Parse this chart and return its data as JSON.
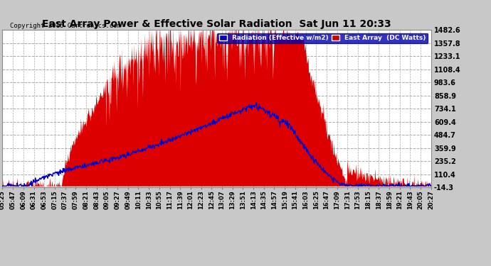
{
  "title": "East Array Power & Effective Solar Radiation  Sat Jun 11 20:33",
  "copyright": "Copyright 2016 Cartronics.com",
  "background_color": "#c8c8c8",
  "plot_bg_color": "#ffffff",
  "legend_labels": [
    "Radiation (Effective w/m2)",
    "East Array  (DC Watts)"
  ],
  "legend_colors": [
    "#0000bb",
    "#cc0000"
  ],
  "yticks": [
    1482.6,
    1357.8,
    1233.1,
    1108.4,
    983.6,
    858.9,
    734.1,
    609.4,
    484.7,
    359.9,
    235.2,
    110.4,
    -14.3
  ],
  "ymin": -14.3,
  "ymax": 1482.6,
  "grid_color": "#aaaaaa",
  "radiation_color": "#0000cc",
  "power_color": "#dd0000",
  "xtick_labels": [
    "05:25",
    "05:47",
    "06:09",
    "06:31",
    "06:53",
    "07:15",
    "07:37",
    "07:59",
    "08:21",
    "08:43",
    "09:05",
    "09:27",
    "09:49",
    "10:11",
    "10:33",
    "10:55",
    "11:17",
    "11:39",
    "12:01",
    "12:23",
    "12:45",
    "13:07",
    "13:29",
    "13:51",
    "14:13",
    "14:35",
    "14:57",
    "15:19",
    "15:41",
    "16:03",
    "16:25",
    "16:47",
    "17:09",
    "17:31",
    "17:53",
    "18:15",
    "18:37",
    "18:59",
    "19:21",
    "19:43",
    "20:05",
    "20:27"
  ]
}
